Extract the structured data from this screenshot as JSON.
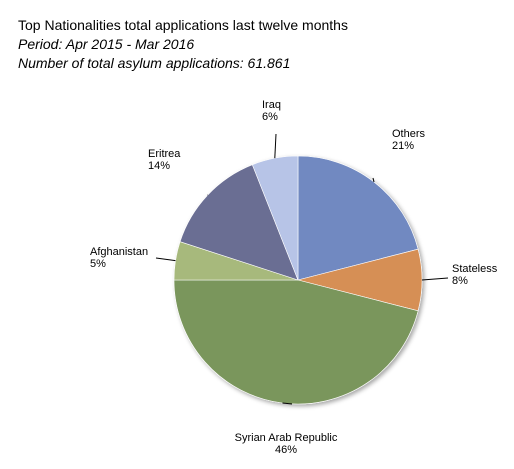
{
  "chart_data": {
    "type": "pie",
    "title": "Top Nationalities total applications last twelve months",
    "subtitle_period": "Period: Apr 2015 - Mar 2016",
    "subtitle_total": "Number of total asylum applications: 61.861",
    "slices": [
      {
        "label": "Others",
        "value": 21,
        "value_label": "21%",
        "color": "#7189c1"
      },
      {
        "label": "Stateless",
        "value": 8,
        "value_label": "8%",
        "color": "#d68f55"
      },
      {
        "label": "Syrian Arab Republic",
        "value": 46,
        "value_label": "46%",
        "color": "#7a965b"
      },
      {
        "label": "Afghanistan",
        "value": 5,
        "value_label": "5%",
        "color": "#a7b97c"
      },
      {
        "label": "Eritrea",
        "value": 14,
        "value_label": "14%",
        "color": "#6b6e93"
      },
      {
        "label": "Iraq",
        "value": 6,
        "value_label": "6%",
        "color": "#b7c4e7"
      }
    ]
  }
}
